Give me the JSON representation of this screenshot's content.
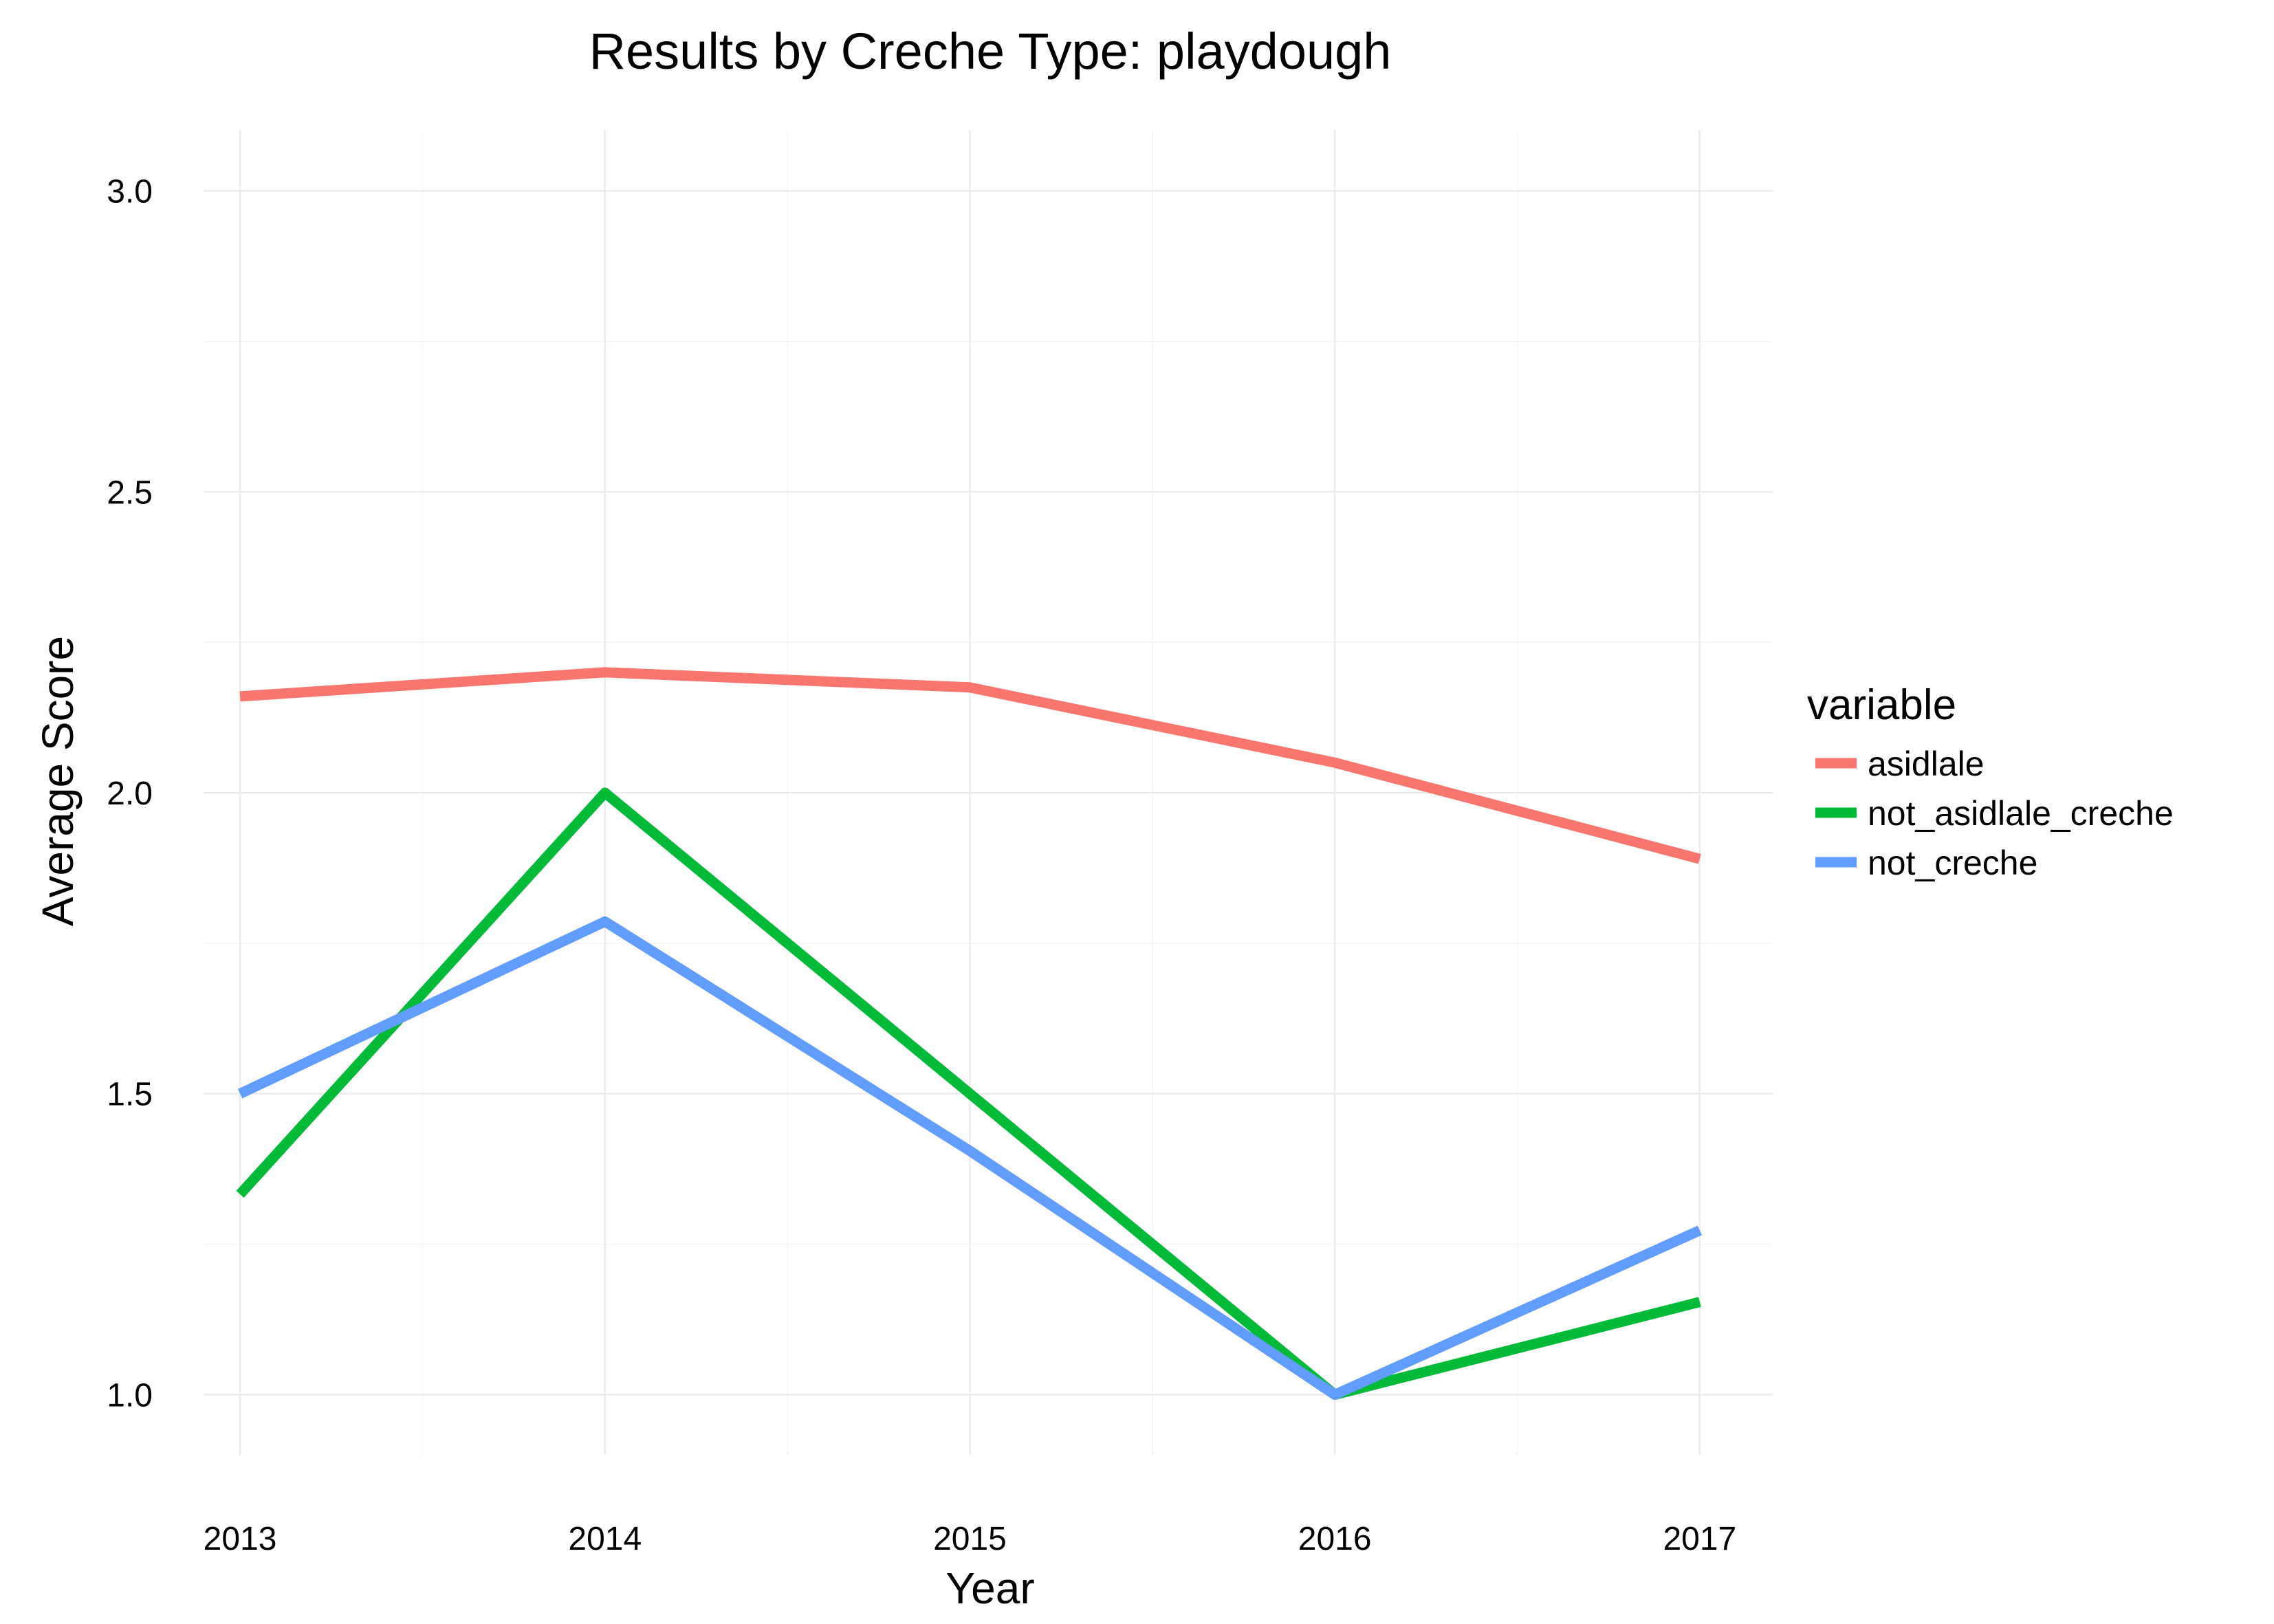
{
  "chart_data": {
    "type": "line",
    "title": "Results by Creche Type: playdough",
    "xlabel": "Year",
    "ylabel": "Average Score",
    "x": [
      2013,
      2014,
      2015,
      2016,
      2017
    ],
    "xticks": [
      "2013",
      "2014",
      "2015",
      "2016",
      "2017"
    ],
    "yticks": [
      "1.0",
      "1.5",
      "2.0",
      "2.5",
      "3.0"
    ],
    "xlim": [
      2012.9,
      2017.2
    ],
    "ylim": [
      0.9,
      3.1
    ],
    "grid": true,
    "legend": {
      "title": "variable",
      "placement": "right"
    },
    "series": [
      {
        "name": "asidlale",
        "color": "#F8766D",
        "values": [
          2.16,
          2.2,
          2.175,
          2.05,
          1.89
        ]
      },
      {
        "name": "not_asidlale_creche",
        "color": "#00BA38",
        "values": [
          1.333,
          2.0,
          1.5,
          1.0,
          1.154
        ]
      },
      {
        "name": "not_creche",
        "color": "#619CFF",
        "values": [
          1.5,
          1.786,
          1.405,
          1.0,
          1.273
        ]
      }
    ]
  }
}
